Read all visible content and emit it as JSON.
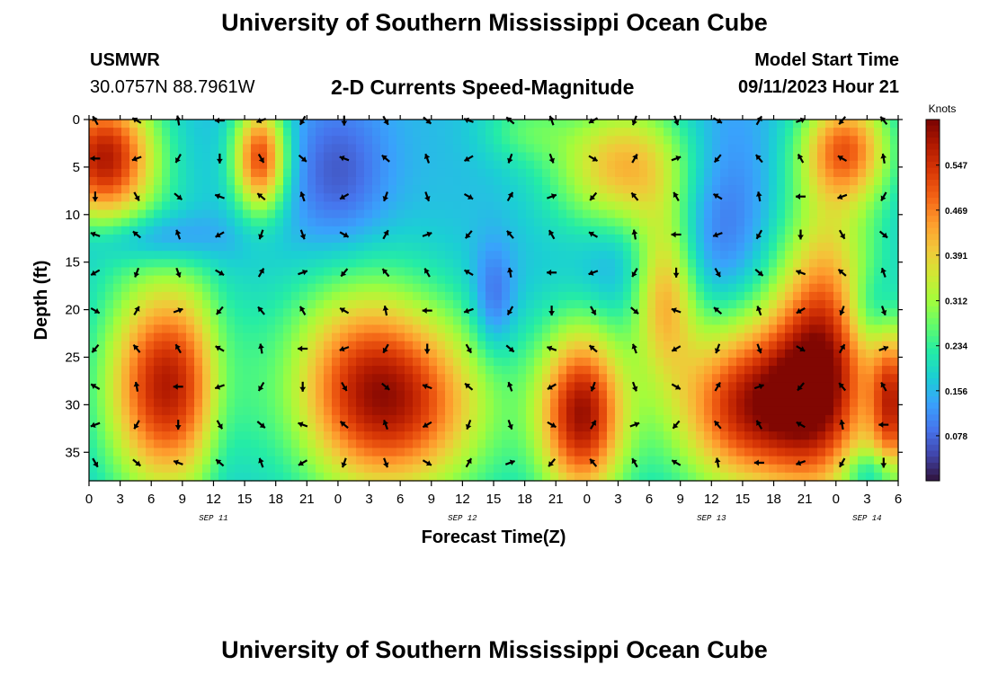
{
  "header": {
    "title": "University of Southern Mississippi Ocean Cube",
    "station_id": "USMWR",
    "station_location": "30.0757N  88.7961W",
    "subtitle": "2-D Currents Speed-Magnitude",
    "model_label": "Model Start Time",
    "model_time": "09/11/2023 Hour 21",
    "footer_title": "University of Southern Mississippi Ocean Cube"
  },
  "colors": {
    "scale": [
      "#30123b",
      "#4145ab",
      "#4675ed",
      "#39a2fc",
      "#1bcfd4",
      "#24eca6",
      "#61fc6c",
      "#a4fc3b",
      "#d1e834",
      "#f3c63a",
      "#fe9b2d",
      "#f36315",
      "#d93806",
      "#b11901",
      "#7a0402"
    ],
    "arrow": "#000000"
  },
  "chart_data": {
    "type": "heatmap",
    "title": "2-D Currents Speed-Magnitude",
    "xlabel": "Forecast Time(Z)",
    "ylabel": "Depth (ft)",
    "x_unit": "hours since 2023-09-11 00Z",
    "xlim": [
      0,
      78
    ],
    "x_ticks": [
      0,
      3,
      6,
      9,
      12,
      15,
      18,
      21,
      24,
      27,
      30,
      33,
      36,
      39,
      42,
      45,
      48,
      51,
      54,
      57,
      60,
      63,
      66,
      69,
      72,
      75,
      78
    ],
    "x_tick_labels": [
      "0",
      "3",
      "6",
      "9",
      "12",
      "15",
      "18",
      "21",
      "0",
      "3",
      "6",
      "9",
      "12",
      "15",
      "18",
      "21",
      "0",
      "3",
      "6",
      "9",
      "12",
      "15",
      "18",
      "21",
      "0",
      "3",
      "6"
    ],
    "date_labels": [
      {
        "x": 12,
        "text": "SEP 11"
      },
      {
        "x": 36,
        "text": "SEP 12"
      },
      {
        "x": 60,
        "text": "SEP 13"
      },
      {
        "x": 75,
        "text": "SEP 14"
      }
    ],
    "ylim": [
      0,
      38
    ],
    "y_ticks": [
      0,
      5,
      10,
      15,
      20,
      25,
      30,
      35
    ],
    "y_tick_labels": [
      "0",
      "5",
      "10",
      "15",
      "20",
      "25",
      "30",
      "35"
    ],
    "colorbar": {
      "title": "Knots",
      "range": [
        0,
        0.626
      ],
      "ticks": [
        0.078,
        0.156,
        0.234,
        0.312,
        0.391,
        0.469,
        0.547
      ],
      "tick_labels": [
        "0.078",
        "0.156",
        "0.234",
        "0.312",
        "0.391",
        "0.469",
        "0.547"
      ]
    },
    "speed_field": {
      "units": "knots",
      "description": "Gaussian-blob approximation of the speed-magnitude field",
      "background": 0.16,
      "blobs": [
        {
          "x": 1.5,
          "y": 4,
          "sx": 3.5,
          "sy": 5,
          "amp": 0.42
        },
        {
          "x": 7.5,
          "y": 28,
          "sx": 4.2,
          "sy": 8,
          "amp": 0.42
        },
        {
          "x": 16.5,
          "y": 4,
          "sx": 1.8,
          "sy": 4,
          "amp": 0.36
        },
        {
          "x": 31,
          "y": 30,
          "sx": 6,
          "sy": 7,
          "amp": 0.3
        },
        {
          "x": 42,
          "y": 1,
          "sx": 3,
          "sy": 2.5,
          "amp": 0.08
        },
        {
          "x": 52,
          "y": 5,
          "sx": 5,
          "sy": 5,
          "amp": 0.27
        },
        {
          "x": 55.5,
          "y": 18,
          "sx": 2.2,
          "sy": 6,
          "amp": 0.26
        },
        {
          "x": 47.5,
          "y": 31,
          "sx": 3,
          "sy": 6.5,
          "amp": 0.43
        },
        {
          "x": 64,
          "y": 30,
          "sx": 5.5,
          "sy": 6.5,
          "amp": 0.42
        },
        {
          "x": 71,
          "y": 24,
          "sx": 3.5,
          "sy": 11,
          "amp": 0.35
        },
        {
          "x": 73,
          "y": 3,
          "sx": 3,
          "sy": 4,
          "amp": 0.3
        },
        {
          "x": 77.5,
          "y": 30,
          "sx": 1.5,
          "sy": 6,
          "amp": 0.34
        },
        {
          "x": 25.5,
          "y": 27,
          "sx": 5,
          "sy": 8,
          "amp": 0.22
        },
        {
          "x": 6,
          "y": 12.5,
          "sx": 5,
          "sy": 2,
          "amp": -0.1
        },
        {
          "x": 24,
          "y": 6,
          "sx": 3.5,
          "sy": 6,
          "amp": -0.1
        },
        {
          "x": 39,
          "y": 19,
          "sx": 1.4,
          "sy": 4,
          "amp": -0.1
        },
        {
          "x": 60,
          "y": 9,
          "sx": 4,
          "sy": 8,
          "amp": -0.1
        },
        {
          "x": 75.5,
          "y": 20,
          "sx": 2,
          "sy": 3,
          "amp": -0.1
        },
        {
          "x": 75.5,
          "y": 37,
          "sx": 2,
          "sy": 1.6,
          "amp": -0.1
        },
        {
          "x": 13,
          "y": 30,
          "sx": 1.6,
          "sy": 8,
          "amp": -0.06
        },
        {
          "x": 51,
          "y": 15,
          "sx": 3,
          "sy": 4,
          "amp": -0.05
        }
      ]
    },
    "vectors": {
      "description": "Current direction arrows, angle in degrees (0 = east, counter-clockwise)",
      "x_hours": [
        0,
        4,
        8,
        12,
        16,
        20,
        24,
        28,
        32,
        36,
        40,
        44,
        48,
        52,
        56,
        60,
        64,
        68,
        72,
        76
      ],
      "depths_ft": [
        0,
        4,
        8,
        12,
        16,
        20,
        24,
        28,
        32,
        36
      ],
      "pattern": [
        120,
        150,
        100,
        180,
        200,
        240,
        270,
        300,
        320,
        160,
        140,
        110,
        210,
        250,
        290,
        330,
        60,
        20,
        230,
        130
      ]
    }
  }
}
